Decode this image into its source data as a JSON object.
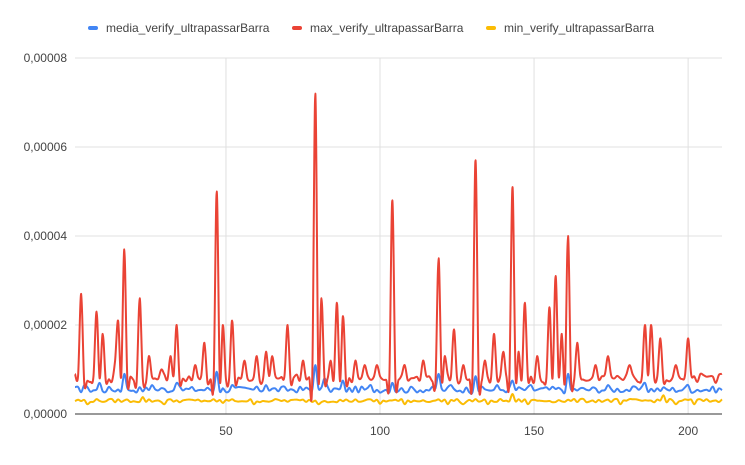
{
  "chart_data": {
    "type": "line",
    "title": "",
    "xlabel": "",
    "ylabel": "",
    "xlim": [
      1,
      211
    ],
    "ylim": [
      0,
      8e-05
    ],
    "grid": true,
    "legend_position": "top-left",
    "x_ticks": [
      {
        "value": 50,
        "label": "50"
      },
      {
        "value": 100,
        "label": "100"
      },
      {
        "value": 150,
        "label": "150"
      },
      {
        "value": 200,
        "label": "200"
      }
    ],
    "y_ticks": [
      {
        "value": 0,
        "label": "0,00000"
      },
      {
        "value": 2e-05,
        "label": "0,00002"
      },
      {
        "value": 4e-05,
        "label": "0,00004"
      },
      {
        "value": 6e-05,
        "label": "0,00006"
      },
      {
        "value": 8e-05,
        "label": "0,00008"
      }
    ],
    "series": [
      {
        "name": "media_verify_ultrapassarBarra",
        "color": "#4285f4",
        "base": 5.5e-06,
        "points": [
          [
            4,
            6.5e-06
          ],
          [
            9,
            7e-06
          ],
          [
            17,
            9e-06
          ],
          [
            26,
            6.5e-06
          ],
          [
            34,
            7e-06
          ],
          [
            47,
            9.5e-06
          ],
          [
            52,
            6.5e-06
          ],
          [
            63,
            6.5e-06
          ],
          [
            79,
            1.1e-05
          ],
          [
            82,
            8e-06
          ],
          [
            88,
            7.5e-06
          ],
          [
            97,
            6.5e-06
          ],
          [
            104,
            7e-06
          ],
          [
            119,
            9e-06
          ],
          [
            123,
            6.5e-06
          ],
          [
            131,
            8.5e-06
          ],
          [
            138,
            6.5e-06
          ],
          [
            143,
            7.5e-06
          ],
          [
            149,
            6.5e-06
          ],
          [
            161,
            9e-06
          ],
          [
            174,
            6.5e-06
          ],
          [
            186,
            7e-06
          ],
          [
            200,
            6.5e-06
          ]
        ]
      },
      {
        "name": "max_verify_ultrapassarBarra",
        "color": "#ea4335",
        "base": 8e-06,
        "points": [
          [
            1,
            9e-06
          ],
          [
            3,
            2.7e-05
          ],
          [
            8,
            2.3e-05
          ],
          [
            10,
            1.8e-05
          ],
          [
            14,
            1.2e-05
          ],
          [
            15,
            2.1e-05
          ],
          [
            17,
            3.7e-05
          ],
          [
            22,
            2.6e-05
          ],
          [
            25,
            1.3e-05
          ],
          [
            29,
            1e-05
          ],
          [
            32,
            1.3e-05
          ],
          [
            34,
            2e-05
          ],
          [
            40,
            1.1e-05
          ],
          [
            43,
            1.6e-05
          ],
          [
            47,
            5e-05
          ],
          [
            49,
            2e-05
          ],
          [
            52,
            2.1e-05
          ],
          [
            56,
            1.2e-05
          ],
          [
            60,
            1.3e-05
          ],
          [
            63,
            1.4e-05
          ],
          [
            65,
            1.3e-05
          ],
          [
            70,
            2e-05
          ],
          [
            75,
            1.2e-05
          ],
          [
            79,
            7.2e-05
          ],
          [
            81,
            2.6e-05
          ],
          [
            84,
            1.2e-05
          ],
          [
            86,
            2.5e-05
          ],
          [
            88,
            2.2e-05
          ],
          [
            92,
            1.2e-05
          ],
          [
            95,
            1.1e-05
          ],
          [
            99,
            1.1e-05
          ],
          [
            104,
            4.8e-05
          ],
          [
            108,
            1.1e-05
          ],
          [
            114,
            1.2e-05
          ],
          [
            119,
            3.5e-05
          ],
          [
            121,
            1.3e-05
          ],
          [
            124,
            1.9e-05
          ],
          [
            127,
            1.1e-05
          ],
          [
            131,
            5.7e-05
          ],
          [
            134,
            1.2e-05
          ],
          [
            137,
            1.8e-05
          ],
          [
            140,
            1.4e-05
          ],
          [
            143,
            5.1e-05
          ],
          [
            145,
            1.4e-05
          ],
          [
            147,
            2.5e-05
          ],
          [
            151,
            1.3e-05
          ],
          [
            155,
            2.4e-05
          ],
          [
            157,
            3.1e-05
          ],
          [
            159,
            1.8e-05
          ],
          [
            161,
            4e-05
          ],
          [
            164,
            1.6e-05
          ],
          [
            170,
            1.1e-05
          ],
          [
            174,
            1.3e-05
          ],
          [
            181,
            1.1e-05
          ],
          [
            186,
            2e-05
          ],
          [
            188,
            2e-05
          ],
          [
            191,
            1.7e-05
          ],
          [
            196,
            1.1e-05
          ],
          [
            200,
            1.7e-05
          ],
          [
            204,
            9e-06
          ],
          [
            209,
            7e-06
          ],
          [
            211,
            9e-06
          ]
        ]
      },
      {
        "name": "min_verify_ultrapassarBarra",
        "color": "#fbbc04",
        "base": 3e-06,
        "points": [
          [
            5,
            2.2e-06
          ],
          [
            23,
            3.8e-06
          ],
          [
            30,
            2.2e-06
          ],
          [
            47,
            2.8e-06
          ],
          [
            49,
            2.5e-06
          ],
          [
            59,
            2.2e-06
          ],
          [
            80,
            2.2e-06
          ],
          [
            100,
            2.3e-06
          ],
          [
            108,
            2.2e-06
          ],
          [
            122,
            2.2e-06
          ],
          [
            127,
            2.2e-06
          ],
          [
            135,
            2.2e-06
          ],
          [
            143,
            4.5e-06
          ],
          [
            148,
            2.2e-06
          ],
          [
            178,
            2.2e-06
          ],
          [
            192,
            4.2e-06
          ],
          [
            196,
            2.2e-06
          ],
          [
            202,
            2.2e-06
          ]
        ]
      }
    ]
  }
}
